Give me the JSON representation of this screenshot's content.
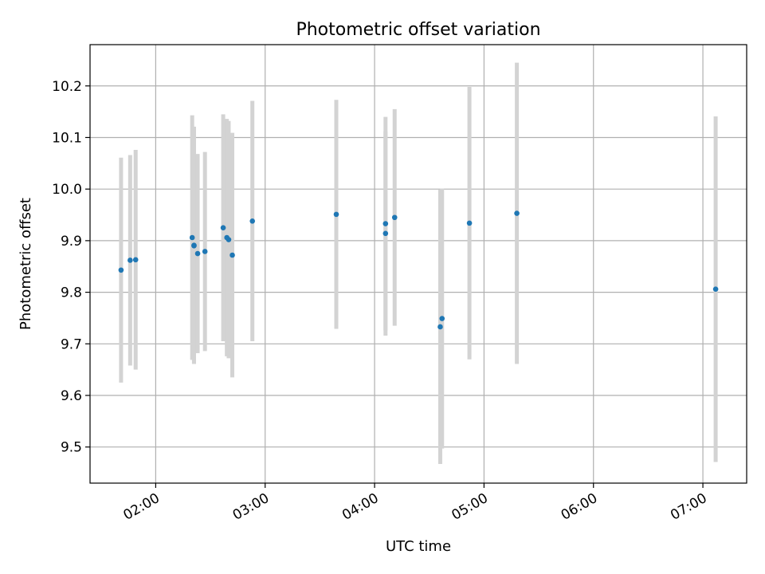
{
  "chart_data": {
    "type": "scatter",
    "title": "Photometric offset variation",
    "xlabel": "UTC time",
    "ylabel": "Photometric offset",
    "x_unit": "UTC hh:mm",
    "xlim": [
      "01:24",
      "07:24"
    ],
    "ylim": [
      9.43,
      10.28
    ],
    "grid": true,
    "x_ticks": [
      "02:00",
      "03:00",
      "04:00",
      "05:00",
      "06:00",
      "07:00"
    ],
    "y_ticks": [
      "9.5",
      "9.6",
      "9.7",
      "9.8",
      "9.9",
      "10.0",
      "10.1",
      "10.2"
    ],
    "colors": {
      "point": "#1f77b4",
      "errorbar": "#d3d3d3",
      "grid": "#b0b0b0"
    },
    "points": [
      {
        "x": "01:41",
        "y": 9.843,
        "err": 0.218
      },
      {
        "x": "01:46",
        "y": 9.862,
        "err": 0.204
      },
      {
        "x": "01:49",
        "y": 9.863,
        "err": 0.213
      },
      {
        "x": "02:20",
        "y": 9.906,
        "err": 0.237
      },
      {
        "x": "02:21",
        "y": 9.891,
        "err": 0.23
      },
      {
        "x": "02:21",
        "y": 9.89,
        "err": 0.229
      },
      {
        "x": "02:23",
        "y": 9.875,
        "err": 0.193
      },
      {
        "x": "02:27",
        "y": 9.879,
        "err": 0.193
      },
      {
        "x": "02:37",
        "y": 9.925,
        "err": 0.22
      },
      {
        "x": "02:39",
        "y": 9.906,
        "err": 0.23
      },
      {
        "x": "02:40",
        "y": 9.902,
        "err": 0.23
      },
      {
        "x": "02:42",
        "y": 9.872,
        "err": 0.237
      },
      {
        "x": "02:53",
        "y": 9.938,
        "err": 0.233
      },
      {
        "x": "03:39",
        "y": 9.951,
        "err": 0.222
      },
      {
        "x": "04:06",
        "y": 9.933,
        "err": 0.207
      },
      {
        "x": "04:06",
        "y": 9.914,
        "err": 0.198
      },
      {
        "x": "04:11",
        "y": 9.945,
        "err": 0.21
      },
      {
        "x": "04:36",
        "y": 9.733,
        "err": 0.266
      },
      {
        "x": "04:37",
        "y": 9.749,
        "err": 0.252
      },
      {
        "x": "04:52",
        "y": 9.934,
        "err": 0.264
      },
      {
        "x": "05:18",
        "y": 9.953,
        "err": 0.292
      },
      {
        "x": "07:07",
        "y": 9.806,
        "err": 0.335
      }
    ]
  }
}
